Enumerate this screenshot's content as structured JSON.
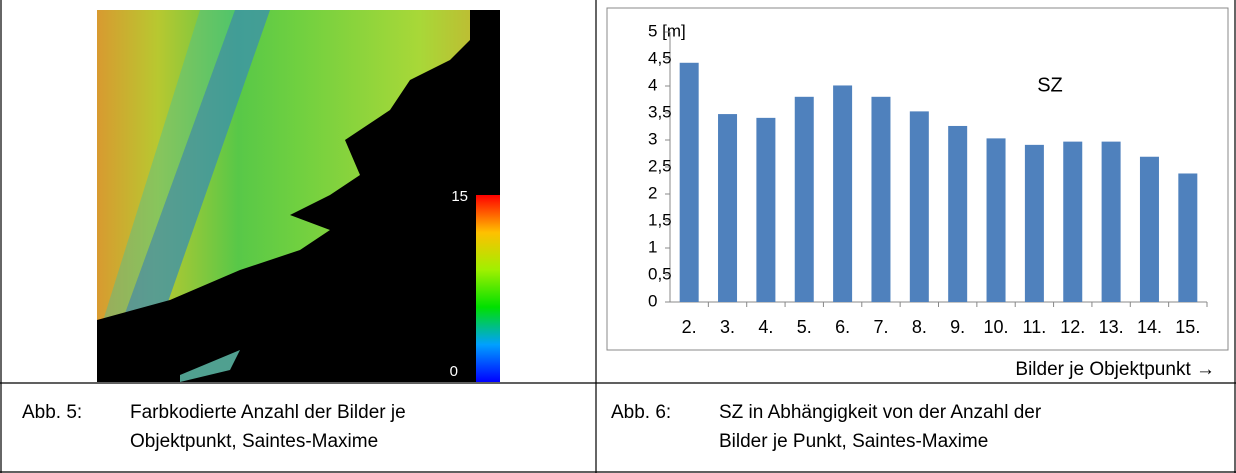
{
  "colorbar": {
    "max_label": "15",
    "min_label": "0"
  },
  "captions": [
    {
      "label": "Abb. 5:",
      "text": "Farbkodierte Anzahl der Bilder je Objektpunkt, Saintes-Maxime"
    },
    {
      "label": "Abb. 6:",
      "text": "SZ in Abhängigkeit von der Anzahl der Bilder je Punkt, Saintes-Maxime"
    }
  ],
  "chart_data": {
    "type": "bar",
    "annotation": "SZ",
    "x_label": "Bilder je Objektpunkt →",
    "categories": [
      "2.",
      "3.",
      "4.",
      "5.",
      "6.",
      "7.",
      "8.",
      "9.",
      "10.",
      "11.",
      "12.",
      "13.",
      "14.",
      "15."
    ],
    "values": [
      4.43,
      3.48,
      3.41,
      3.8,
      4.01,
      3.8,
      3.53,
      3.26,
      3.03,
      2.91,
      2.97,
      2.97,
      2.69,
      2.38
    ],
    "color": "#4f81bd",
    "ylim": [
      0,
      5
    ],
    "yticks": [
      0,
      {
        "value": 0.5,
        "label": "0,5"
      },
      1,
      {
        "value": 1.5,
        "label": "1,5"
      },
      2,
      {
        "value": 2.5,
        "label": "2,5"
      },
      3,
      {
        "value": 3.5,
        "label": "3,5"
      },
      4,
      {
        "value": 4.5,
        "label": "4,5"
      },
      {
        "value": 5,
        "label": "5 [m]"
      }
    ],
    "grid": false
  }
}
